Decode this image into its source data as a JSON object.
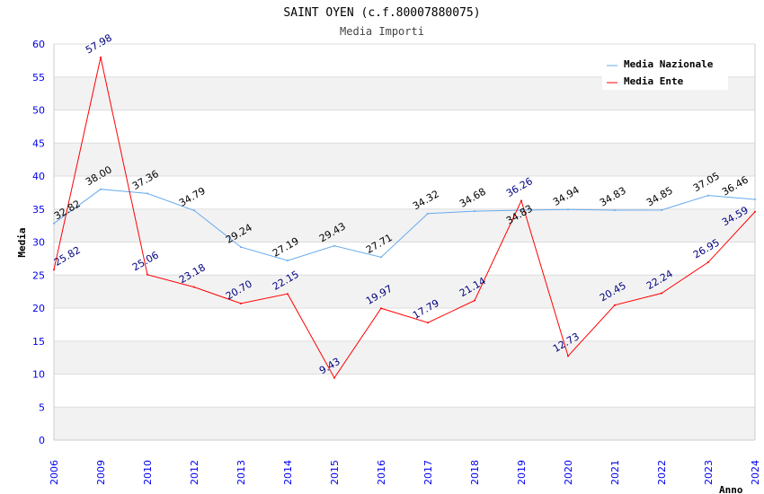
{
  "chart_data": {
    "type": "line",
    "title": "SAINT OYEN (c.f.80007880075)",
    "subtitle": "Media Importi",
    "xlabel": "Anno",
    "ylabel": "Media",
    "ylim": [
      0,
      60
    ],
    "yticks": [
      0,
      5,
      10,
      15,
      20,
      25,
      30,
      35,
      40,
      45,
      50,
      55,
      60
    ],
    "categories": [
      "2006",
      "2009",
      "2010",
      "2012",
      "2013",
      "2014",
      "2015",
      "2016",
      "2017",
      "2018",
      "2019",
      "2020",
      "2021",
      "2022",
      "2023",
      "2024"
    ],
    "legend_position": "top-right",
    "series": [
      {
        "name": "Media Nazionale",
        "color": "#66aaee",
        "label_color": "#000000",
        "values": [
          32.82,
          38.0,
          37.36,
          34.79,
          29.24,
          27.19,
          29.43,
          27.71,
          34.32,
          34.68,
          34.83,
          34.94,
          34.83,
          34.85,
          37.05,
          36.46
        ]
      },
      {
        "name": "Media Ente",
        "color": "#ff0000",
        "label_color": "#000080",
        "values": [
          25.82,
          57.98,
          25.06,
          23.18,
          20.7,
          22.15,
          9.43,
          19.97,
          17.79,
          21.14,
          36.26,
          12.73,
          20.45,
          22.24,
          26.95,
          34.59
        ]
      }
    ]
  }
}
